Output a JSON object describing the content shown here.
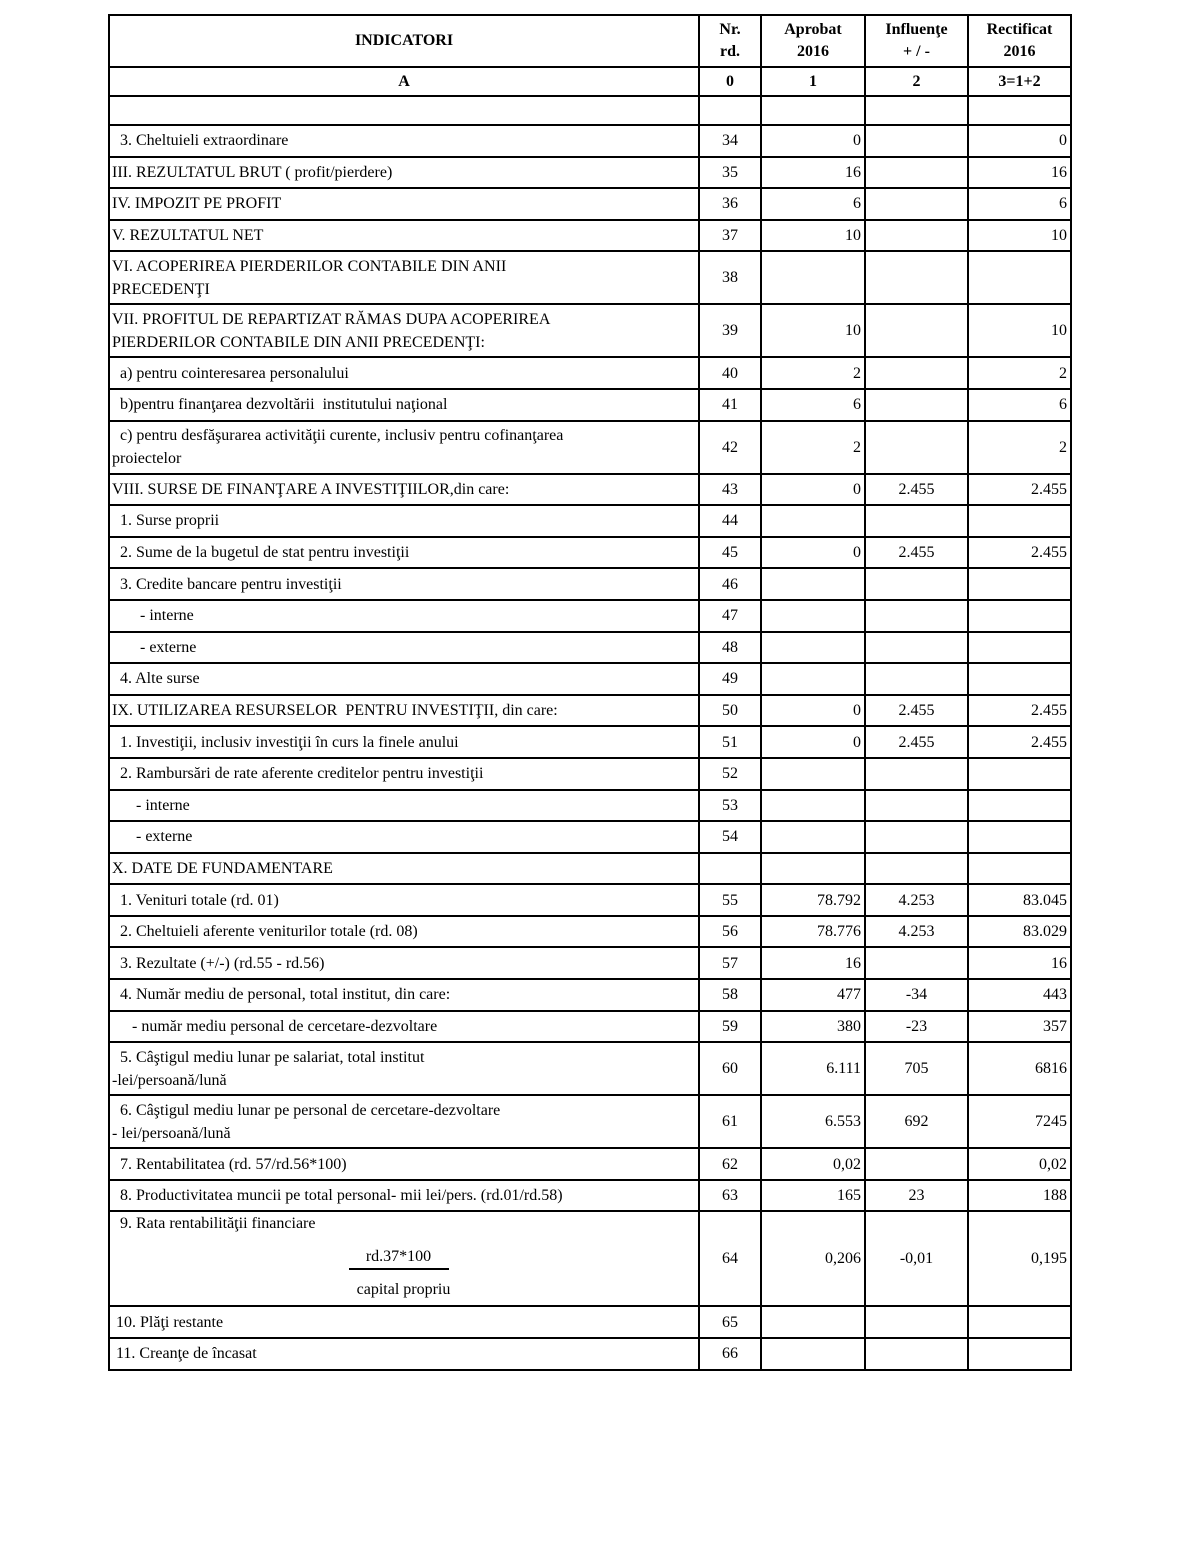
{
  "header": {
    "indicatori": "INDICATORI",
    "nr": [
      "Nr.",
      "rd."
    ],
    "aprobat": [
      "Aprobat",
      "2016"
    ],
    "influente": [
      "Influenţe",
      "+ / -"
    ],
    "rectificat": [
      "Rectificat",
      "2016"
    ]
  },
  "col_index": {
    "a": "A",
    "nr": "0",
    "aprobat": "1",
    "influente": "2",
    "rectificat": "3=1+2"
  },
  "rows": [
    {
      "lines": [
        ""
      ],
      "nr": "",
      "aprobat": "",
      "influente": "",
      "rectificat": ""
    },
    {
      "lines": [
        "  3. Cheltuieli extraordinare"
      ],
      "nr": "34",
      "aprobat": "0",
      "influente": "",
      "rectificat": "0"
    },
    {
      "lines": [
        "III. REZULTATUL BRUT ( profit/pierdere)"
      ],
      "nr": "35",
      "aprobat": "16",
      "influente": "",
      "rectificat": "16"
    },
    {
      "lines": [
        "IV. IMPOZIT PE PROFIT"
      ],
      "nr": "36",
      "aprobat": "6",
      "influente": "",
      "rectificat": "6"
    },
    {
      "lines": [
        "V. REZULTATUL NET"
      ],
      "nr": "37",
      "aprobat": "10",
      "influente": "",
      "rectificat": "10"
    },
    {
      "lines": [
        "VI. ACOPERIREA PIERDERILOR CONTABILE DIN ANII",
        "PRECEDENŢI"
      ],
      "nr": "38",
      "aprobat": "",
      "influente": "",
      "rectificat": ""
    },
    {
      "lines": [
        "VII. PROFITUL DE REPARTIZAT RĂMAS DUPA ACOPERIREA",
        "PIERDERILOR CONTABILE DIN ANII PRECEDENŢI:"
      ],
      "nr": "39",
      "aprobat": "10",
      "influente": "",
      "rectificat": "10"
    },
    {
      "lines": [
        "  a) pentru cointeresarea personalului"
      ],
      "nr": "40",
      "aprobat": "2",
      "influente": "",
      "rectificat": "2"
    },
    {
      "lines": [
        "  b)pentru finanţarea dezvoltării  institutului naţional"
      ],
      "nr": "41",
      "aprobat": "6",
      "influente": "",
      "rectificat": "6"
    },
    {
      "lines": [
        "  c) pentru desfăşurarea activităţii curente, inclusiv pentru cofinanţarea",
        "proiectelor"
      ],
      "nr": "42",
      "aprobat": "2",
      "influente": "",
      "rectificat": "2"
    },
    {
      "lines": [
        "VIII. SURSE DE FINANŢARE A INVESTIŢIILOR,din care:"
      ],
      "nr": "43",
      "aprobat": "0",
      "influente": "2.455",
      "rectificat": "2.455"
    },
    {
      "lines": [
        "  1. Surse proprii"
      ],
      "nr": "44",
      "aprobat": "",
      "influente": "",
      "rectificat": ""
    },
    {
      "lines": [
        "  2. Sume de la bugetul de stat pentru investiţii"
      ],
      "nr": "45",
      "aprobat": "0",
      "influente": "2.455",
      "rectificat": "2.455"
    },
    {
      "lines": [
        "  3. Credite bancare pentru investiţii"
      ],
      "nr": "46",
      "aprobat": "",
      "influente": "",
      "rectificat": ""
    },
    {
      "lines": [
        "       - interne"
      ],
      "nr": "47",
      "aprobat": "",
      "influente": "",
      "rectificat": ""
    },
    {
      "lines": [
        "       - externe"
      ],
      "nr": "48",
      "aprobat": "",
      "influente": "",
      "rectificat": ""
    },
    {
      "lines": [
        "  4. Alte surse"
      ],
      "nr": "49",
      "aprobat": "",
      "influente": "",
      "rectificat": ""
    },
    {
      "lines": [
        "IX. UTILIZAREA RESURSELOR  PENTRU INVESTIŢII, din care:"
      ],
      "nr": "50",
      "aprobat": "0",
      "influente": "2.455",
      "rectificat": "2.455"
    },
    {
      "lines": [
        "  1. Investiţii, inclusiv investiţii în curs la finele anului"
      ],
      "nr": "51",
      "aprobat": "0",
      "influente": "2.455",
      "rectificat": "2.455"
    },
    {
      "lines": [
        "  2. Rambursări de rate aferente creditelor pentru investiţii"
      ],
      "nr": "52",
      "aprobat": "",
      "influente": "",
      "rectificat": ""
    },
    {
      "lines": [
        "      - interne"
      ],
      "nr": "53",
      "aprobat": "",
      "influente": "",
      "rectificat": ""
    },
    {
      "lines": [
        "      - externe"
      ],
      "nr": "54",
      "aprobat": "",
      "influente": "",
      "rectificat": ""
    },
    {
      "lines": [
        "X. DATE DE FUNDAMENTARE"
      ],
      "nr": "",
      "aprobat": "",
      "influente": "",
      "rectificat": ""
    },
    {
      "lines": [
        "  1. Venituri totale (rd. 01)"
      ],
      "nr": "55",
      "aprobat": "78.792",
      "influente": "4.253",
      "rectificat": "83.045"
    },
    {
      "lines": [
        "  2. Cheltuieli aferente veniturilor totale (rd. 08)"
      ],
      "nr": "56",
      "aprobat": "78.776",
      "influente": "4.253",
      "rectificat": "83.029"
    },
    {
      "lines": [
        "  3. Rezultate (+/-) (rd.55 - rd.56)"
      ],
      "nr": "57",
      "aprobat": "16",
      "influente": "",
      "rectificat": "16"
    },
    {
      "lines": [
        "  4. Număr mediu de personal, total institut, din care:"
      ],
      "nr": "58",
      "aprobat": "477",
      "influente": "-34",
      "rectificat": "443"
    },
    {
      "lines": [
        "     - număr mediu personal de cercetare-dezvoltare"
      ],
      "nr": "59",
      "aprobat": "380",
      "influente": "-23",
      "rectificat": "357"
    },
    {
      "lines": [
        "  5. Câştigul mediu lunar pe salariat, total institut",
        "-lei/persoană/lună"
      ],
      "nr": "60",
      "aprobat": "6.111",
      "influente": "705",
      "rectificat": "6816"
    },
    {
      "lines": [
        "  6. Câştigul mediu lunar pe personal de cercetare-dezvoltare",
        "- lei/persoană/lună"
      ],
      "nr": "61",
      "aprobat": "6.553",
      "influente": "692",
      "rectificat": "7245"
    },
    {
      "lines": [
        "  7. Rentabilitatea (rd. 57/rd.56*100)"
      ],
      "nr": "62",
      "aprobat": "0,02",
      "influente": "",
      "rectificat": "0,02"
    },
    {
      "lines": [
        "  8. Productivitatea muncii pe total personal- mii lei/pers. (rd.01/rd.58)"
      ],
      "nr": "63",
      "aprobat": "165",
      "influente": "23",
      "rectificat": "188"
    },
    {
      "lines": [
        "  9. Rata rentabilităţii financiare"
      ],
      "fraction": {
        "numerator": "rd.37*100",
        "denominator": "capital propriu"
      },
      "nr": "64",
      "aprobat": "0,206",
      "influente": "-0,01",
      "rectificat": "0,195"
    },
    {
      "lines": [
        " 10. Plăţi restante"
      ],
      "nr": "65",
      "aprobat": "",
      "influente": "",
      "rectificat": ""
    },
    {
      "lines": [
        " 11. Creanţe de încasat"
      ],
      "nr": "66",
      "aprobat": "",
      "influente": "",
      "rectificat": ""
    }
  ]
}
